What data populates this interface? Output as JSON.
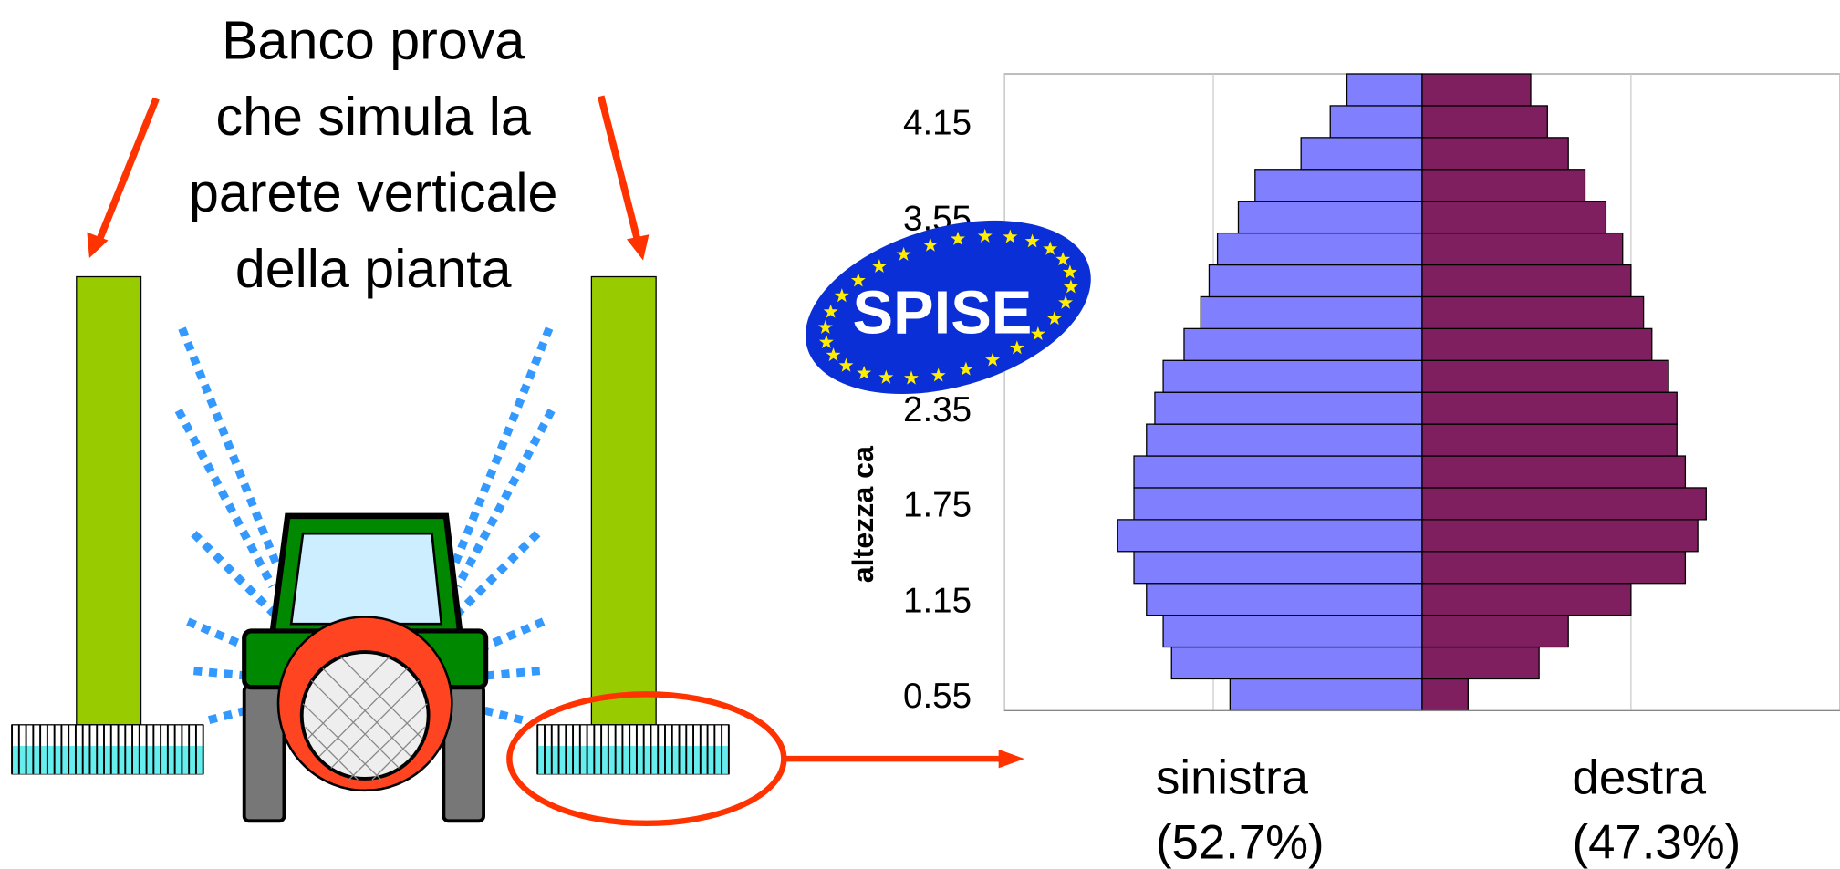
{
  "diagram": {
    "title_lines": [
      "Banco prova",
      "che simula la",
      "parete verticale",
      "della pianta"
    ]
  },
  "logo": {
    "text": "SPISE"
  },
  "chart_data": {
    "type": "bar",
    "orientation": "horizontal",
    "y_label": "altezza ca",
    "categories": [
      "0.55",
      null,
      null,
      "1.15",
      null,
      null,
      "1.75",
      null,
      null,
      "2.35",
      null,
      null,
      null,
      null,
      null,
      "3.55",
      null,
      null,
      "4.15",
      null
    ],
    "series": [
      {
        "name": "sinistra",
        "label": "(52.7%)",
        "color": "#8080ff",
        "values": [
          -4.6,
          -6.0,
          -6.2,
          -6.6,
          -6.9,
          -7.3,
          -6.9,
          -6.9,
          -6.6,
          -6.4,
          -6.2,
          -5.7,
          -5.3,
          -5.1,
          -4.9,
          -4.4,
          -4.0,
          -2.9,
          -2.2,
          -1.8
        ]
      },
      {
        "name": "destra",
        "label": "(47.3%)",
        "color": "#7f1f5f",
        "values": [
          1.1,
          2.8,
          3.5,
          5.0,
          6.3,
          6.6,
          6.8,
          6.3,
          6.1,
          6.1,
          5.9,
          5.5,
          5.3,
          5.0,
          4.8,
          4.4,
          3.9,
          3.5,
          3.0,
          2.6
        ]
      }
    ],
    "xlim": [
      -10,
      10
    ],
    "xticks": [
      -10,
      -5,
      0,
      5,
      10
    ],
    "grid": true
  }
}
